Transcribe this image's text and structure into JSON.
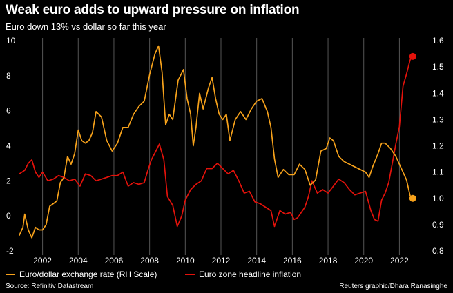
{
  "header": {
    "title": "Weak euro adds to upward pressure on inflation",
    "subtitle": "Euro down 13% vs dollar so far this year"
  },
  "legend": {
    "eurusd": "Euro/dollar exchange rate (RH Scale)",
    "inflation": "Euro zone headline inflation"
  },
  "footer": {
    "source": "Source: Refinitiv Datastream",
    "credit": "Reuters graphic/Dhara Ranasinghe"
  },
  "colors": {
    "eurusd": "#f7a21b",
    "inflation": "#e3120b",
    "background": "#000000",
    "grid": "#555555"
  },
  "chart_data": {
    "type": "line",
    "title": "Weak euro adds to upward pressure on inflation",
    "subtitle": "Euro down 13% vs dollar so far this year",
    "xlabel": "",
    "ylabel_left": "",
    "ylabel_right": "",
    "xlim": [
      2000.7,
      2023.3
    ],
    "ylim_left": [
      -2,
      10
    ],
    "ylim_right": [
      0.8,
      1.6
    ],
    "x_ticks": [
      2002,
      2004,
      2006,
      2008,
      2010,
      2012,
      2014,
      2016,
      2018,
      2020,
      2022
    ],
    "x_tick_labels": [
      "2002",
      "2004",
      "2006",
      "2008",
      "2010",
      "2012",
      "2014",
      "2016",
      "2018",
      "2020",
      "2022"
    ],
    "y_left_ticks": [
      -2,
      0,
      2,
      4,
      6,
      8,
      10
    ],
    "y_left_tick_labels": [
      "-2",
      "0",
      "2",
      "4",
      "6",
      "8",
      "10"
    ],
    "y_right_ticks": [
      0.8,
      0.9,
      1.0,
      1.1,
      1.2,
      1.3,
      1.4,
      1.5,
      1.6
    ],
    "y_right_tick_labels": [
      "0.8",
      "0.9",
      "1.0",
      "1.1",
      "1.2",
      "1.3",
      "1.4",
      "1.5",
      "1.6"
    ],
    "grid": "vertical",
    "legend_position": "bottom",
    "series": [
      {
        "name": "Euro/dollar exchange rate (RH Scale)",
        "axis": "right",
        "x": [
          2000.7,
          2000.9,
          2001.0,
          2001.2,
          2001.4,
          2001.6,
          2001.8,
          2002.0,
          2002.2,
          2002.4,
          2002.6,
          2002.8,
          2003.0,
          2003.2,
          2003.4,
          2003.6,
          2003.8,
          2004.0,
          2004.2,
          2004.4,
          2004.6,
          2004.8,
          2005.0,
          2005.3,
          2005.6,
          2005.9,
          2006.2,
          2006.5,
          2006.8,
          2007.1,
          2007.4,
          2007.7,
          2008.0,
          2008.3,
          2008.5,
          2008.7,
          2008.9,
          2009.1,
          2009.3,
          2009.6,
          2009.9,
          2010.1,
          2010.3,
          2010.45,
          2010.6,
          2010.8,
          2011.0,
          2011.3,
          2011.5,
          2011.7,
          2011.9,
          2012.1,
          2012.3,
          2012.5,
          2012.8,
          2013.1,
          2013.4,
          2013.7,
          2014.0,
          2014.3,
          2014.6,
          2014.8,
          2015.0,
          2015.2,
          2015.5,
          2015.8,
          2016.1,
          2016.4,
          2016.7,
          2017.0,
          2017.3,
          2017.6,
          2017.9,
          2018.1,
          2018.3,
          2018.6,
          2018.9,
          2019.2,
          2019.5,
          2019.8,
          2020.1,
          2020.3,
          2020.5,
          2020.8,
          2021.0,
          2021.2,
          2021.5,
          2021.8,
          2022.0,
          2022.2,
          2022.4,
          2022.6,
          2022.75
        ],
        "y": [
          0.86,
          0.89,
          0.94,
          0.88,
          0.85,
          0.89,
          0.88,
          0.88,
          0.9,
          0.97,
          0.98,
          0.99,
          1.06,
          1.08,
          1.16,
          1.13,
          1.17,
          1.26,
          1.22,
          1.21,
          1.22,
          1.25,
          1.33,
          1.31,
          1.22,
          1.18,
          1.21,
          1.27,
          1.27,
          1.32,
          1.35,
          1.37,
          1.47,
          1.55,
          1.58,
          1.48,
          1.28,
          1.32,
          1.3,
          1.45,
          1.49,
          1.38,
          1.32,
          1.2,
          1.27,
          1.4,
          1.34,
          1.42,
          1.46,
          1.38,
          1.32,
          1.3,
          1.32,
          1.22,
          1.3,
          1.33,
          1.3,
          1.34,
          1.37,
          1.38,
          1.33,
          1.27,
          1.15,
          1.08,
          1.11,
          1.09,
          1.09,
          1.13,
          1.11,
          1.05,
          1.07,
          1.18,
          1.19,
          1.23,
          1.22,
          1.16,
          1.14,
          1.13,
          1.12,
          1.11,
          1.1,
          1.08,
          1.12,
          1.17,
          1.21,
          1.21,
          1.19,
          1.16,
          1.13,
          1.1,
          1.07,
          1.01,
          1.0
        ]
      },
      {
        "name": "Euro zone headline inflation",
        "axis": "left",
        "x": [
          2000.7,
          2001.0,
          2001.2,
          2001.4,
          2001.6,
          2001.8,
          2002.0,
          2002.3,
          2002.6,
          2002.9,
          2003.2,
          2003.5,
          2003.8,
          2004.1,
          2004.4,
          2004.7,
          2005.0,
          2005.3,
          2005.6,
          2005.9,
          2006.2,
          2006.5,
          2006.8,
          2007.1,
          2007.4,
          2007.7,
          2007.9,
          2008.1,
          2008.3,
          2008.55,
          2008.8,
          2009.0,
          2009.3,
          2009.55,
          2009.8,
          2010.0,
          2010.3,
          2010.6,
          2010.9,
          2011.2,
          2011.5,
          2011.8,
          2012.1,
          2012.4,
          2012.7,
          2013.0,
          2013.3,
          2013.6,
          2013.9,
          2014.2,
          2014.5,
          2014.8,
          2015.0,
          2015.3,
          2015.6,
          2015.9,
          2016.1,
          2016.3,
          2016.5,
          2016.7,
          2016.9,
          2017.1,
          2017.4,
          2017.7,
          2018.0,
          2018.3,
          2018.6,
          2018.9,
          2019.2,
          2019.5,
          2019.8,
          2020.1,
          2020.4,
          2020.6,
          2020.8,
          2021.0,
          2021.2,
          2021.4,
          2021.6,
          2021.8,
          2022.0,
          2022.2,
          2022.4,
          2022.6,
          2022.75
        ],
        "y": [
          2.4,
          2.6,
          3.0,
          3.2,
          2.5,
          2.2,
          2.5,
          2.0,
          2.1,
          2.3,
          2.2,
          2.0,
          2.1,
          1.7,
          2.4,
          2.3,
          2.0,
          2.1,
          2.2,
          2.3,
          2.3,
          2.5,
          1.7,
          1.9,
          1.8,
          1.9,
          2.6,
          3.2,
          3.6,
          4.1,
          3.2,
          1.1,
          0.6,
          -0.6,
          0.0,
          0.9,
          1.5,
          1.8,
          2.0,
          2.7,
          2.7,
          3.0,
          2.7,
          2.4,
          2.6,
          2.0,
          1.3,
          1.4,
          0.8,
          0.7,
          0.5,
          0.3,
          -0.6,
          0.3,
          0.1,
          0.2,
          -0.2,
          -0.1,
          0.2,
          0.5,
          1.1,
          2.0,
          1.3,
          1.5,
          1.3,
          1.7,
          2.1,
          1.9,
          1.5,
          1.2,
          1.3,
          1.4,
          0.3,
          -0.2,
          -0.3,
          0.9,
          1.3,
          1.9,
          3.0,
          4.1,
          5.1,
          7.4,
          8.1,
          8.9,
          9.1
        ]
      }
    ]
  }
}
